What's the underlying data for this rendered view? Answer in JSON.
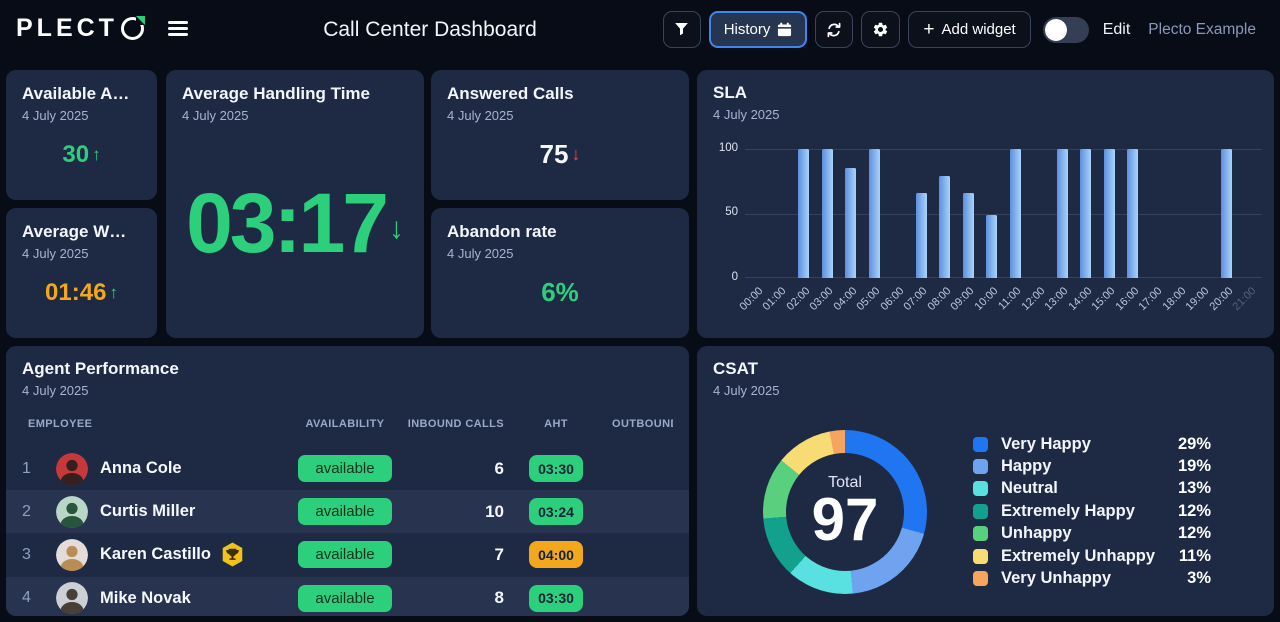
{
  "header": {
    "logo_prefix": "PLECT",
    "title": "Call Center Dashboard",
    "buttons": {
      "history": "History",
      "add_widget_plus": "+",
      "add_widget": "Add widget",
      "edit": "Edit",
      "account": "Plecto Example"
    }
  },
  "colors": {
    "page_bg": "#070c16",
    "card_bg": "#1e2a44",
    "row_alt_bg": "#27334f",
    "green": "#2bcf7c",
    "orange": "#f2a71c",
    "red": "#e25147",
    "accent_blue": "#3f86ee",
    "bar_gradient_from": "#5d8fdd",
    "bar_gradient_to": "#a9d3fb"
  },
  "kpis": {
    "available_agents": {
      "title": "Available A…",
      "date": "4 July 2025",
      "value": "30",
      "arrow": "↑",
      "value_color": "green",
      "arrow_color": "green"
    },
    "average_handling_time": {
      "title": "Average Handling Time",
      "date": "4 July 2025",
      "value": "03:17",
      "arrow": "↓",
      "value_color": "green",
      "arrow_color": "green"
    },
    "answered_calls": {
      "title": "Answered Calls",
      "date": "4 July 2025",
      "value": "75",
      "arrow": "↓",
      "value_color": "white",
      "arrow_color": "red"
    },
    "average_waiting": {
      "title": "Average W…",
      "date": "4 July 2025",
      "value": "01:46",
      "arrow": "↑",
      "value_color": "orange",
      "arrow_color": "green"
    },
    "abandon_rate": {
      "title": "Abandon rate",
      "date": "4 July 2025",
      "value": "6%",
      "arrow": "",
      "value_color": "green"
    }
  },
  "sla": {
    "title": "SLA",
    "date": "4 July 2025",
    "chart_data": {
      "type": "bar",
      "title": "SLA",
      "categories": [
        "00:00",
        "01:00",
        "02:00",
        "03:00",
        "04:00",
        "05:00",
        "06:00",
        "07:00",
        "08:00",
        "09:00",
        "10:00",
        "11:00",
        "12:00",
        "13:00",
        "14:00",
        "15:00",
        "16:00",
        "17:00",
        "18:00",
        "19:00",
        "20:00",
        "21:00"
      ],
      "values": [
        0,
        0,
        100,
        100,
        85,
        100,
        0,
        66,
        79,
        66,
        49,
        100,
        0,
        100,
        100,
        100,
        100,
        0,
        0,
        0,
        100,
        0
      ],
      "ylim": [
        0,
        100
      ],
      "yticks": [
        "100",
        "50",
        "0"
      ],
      "grid": true,
      "bar_color": "#7db4f2"
    }
  },
  "agent_performance": {
    "title": "Agent Performance",
    "date": "4 July 2025",
    "columns": [
      "EMPLOYEE",
      "AVAILABILITY",
      "INBOUND CALLS",
      "AHT",
      "OUTBOUND CAL"
    ],
    "rows": [
      {
        "rank": "1",
        "name": "Anna Cole",
        "availability": "available",
        "inbound": "6",
        "aht": "03:30",
        "aht_status": "green",
        "trophy": false,
        "avatar": {
          "bg": "#c5393b",
          "fg": "#35201d"
        }
      },
      {
        "rank": "2",
        "name": "Curtis Miller",
        "availability": "available",
        "inbound": "10",
        "aht": "03:24",
        "aht_status": "green",
        "trophy": false,
        "avatar": {
          "bg": "#b9d6c6",
          "fg": "#27563c"
        }
      },
      {
        "rank": "3",
        "name": "Karen Castillo",
        "availability": "available",
        "inbound": "7",
        "aht": "04:00",
        "aht_status": "orange",
        "trophy": true,
        "avatar": {
          "bg": "#e3dcd8",
          "fg": "#b98d55"
        }
      },
      {
        "rank": "4",
        "name": "Mike Novak",
        "availability": "available",
        "inbound": "8",
        "aht": "03:30",
        "aht_status": "green",
        "trophy": false,
        "avatar": {
          "bg": "#ccd0d6",
          "fg": "#4a3f38"
        }
      }
    ]
  },
  "csat": {
    "title": "CSAT",
    "date": "4 July 2025",
    "center_label": "Total",
    "center_value": "97",
    "chart_data": {
      "type": "pie",
      "donut": true,
      "legend_position": "right",
      "segments": [
        {
          "label": "Very Happy",
          "pct": 29,
          "pct_label": "29%",
          "color": "#1f76f0"
        },
        {
          "label": "Happy",
          "pct": 19,
          "pct_label": "19%",
          "color": "#6fa3ef"
        },
        {
          "label": "Neutral",
          "pct": 13,
          "pct_label": "13%",
          "color": "#59e0e0"
        },
        {
          "label": "Extremely Happy",
          "pct": 12,
          "pct_label": "12%",
          "color": "#12a18c"
        },
        {
          "label": "Unhappy",
          "pct": 12,
          "pct_label": "12%",
          "color": "#58d07d"
        },
        {
          "label": "Extremely Unhappy",
          "pct": 11,
          "pct_label": "11%",
          "color": "#f6dc72"
        },
        {
          "label": "Very Unhappy",
          "pct": 3,
          "pct_label": "3%",
          "color": "#f5a55f"
        }
      ]
    }
  }
}
